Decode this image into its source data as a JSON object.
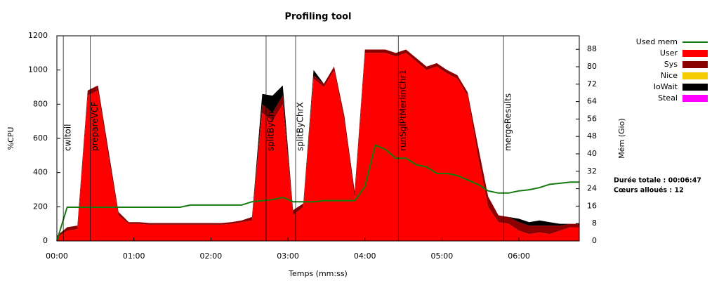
{
  "chart_data": {
    "type": "area",
    "title": "Profiling tool",
    "x_label": "Temps (mm:ss)",
    "y_label": "%CPU",
    "y2_label": "Mém (Gio)",
    "annotations": [
      "Durée totale : 00:06:47",
      "Cœurs alloués : 12"
    ],
    "xlim": [
      0,
      407
    ],
    "xticks": [
      {
        "value": 0,
        "label": "00:00"
      },
      {
        "value": 60,
        "label": "01:00"
      },
      {
        "value": 120,
        "label": "02:00"
      },
      {
        "value": 180,
        "label": "03:00"
      },
      {
        "value": 240,
        "label": "04:00"
      },
      {
        "value": 300,
        "label": "05:00"
      },
      {
        "value": 360,
        "label": "06:00"
      }
    ],
    "ylim": [
      0,
      1200
    ],
    "yticks": [
      0,
      200,
      400,
      600,
      800,
      1000,
      1200
    ],
    "y2lim": [
      0,
      94.2
    ],
    "y2ticks": [
      0,
      8,
      16,
      24,
      32,
      40,
      48,
      56,
      64,
      72,
      80,
      88
    ],
    "stacked": true,
    "x": [
      0,
      8,
      16,
      24,
      32,
      40,
      48,
      56,
      64,
      72,
      80,
      88,
      96,
      104,
      112,
      120,
      128,
      136,
      144,
      152,
      160,
      168,
      176,
      184,
      192,
      200,
      208,
      216,
      224,
      232,
      240,
      248,
      256,
      264,
      272,
      280,
      288,
      296,
      304,
      312,
      320,
      328,
      336,
      344,
      352,
      360,
      368,
      376,
      384,
      392,
      400,
      407
    ],
    "series": [
      {
        "name": "Used mem",
        "color": "#157a10",
        "axis": "y2",
        "values": [
          0,
          15.5,
          15.5,
          15.5,
          15.5,
          15.5,
          15.5,
          15.5,
          15.5,
          15.5,
          15.5,
          15.5,
          15.5,
          16.5,
          16.5,
          16.5,
          16.5,
          16.5,
          16.5,
          18,
          18.5,
          19,
          20,
          18,
          18,
          18,
          18.5,
          18.5,
          18.5,
          18.5,
          25,
          44,
          42,
          38,
          38,
          35,
          34,
          31,
          31,
          30,
          28,
          26,
          23,
          22,
          22,
          23,
          23.5,
          24.5,
          26,
          26.5,
          27,
          27
        ]
      },
      {
        "name": "User",
        "color": "#ff0000",
        "values": [
          20,
          60,
          70,
          850,
          880,
          500,
          150,
          100,
          100,
          95,
          95,
          95,
          95,
          95,
          95,
          95,
          95,
          100,
          110,
          120,
          750,
          700,
          800,
          150,
          200,
          950,
          900,
          1000,
          700,
          250,
          1100,
          1100,
          1100,
          1080,
          1100,
          1050,
          1000,
          1020,
          980,
          950,
          850,
          500,
          200,
          110,
          100,
          60,
          40,
          50,
          40,
          60,
          80,
          80
        ]
      },
      {
        "name": "Sys",
        "color": "#8b0000",
        "values": [
          10,
          20,
          20,
          30,
          30,
          40,
          20,
          10,
          10,
          10,
          10,
          10,
          10,
          10,
          10,
          10,
          10,
          10,
          10,
          20,
          50,
          50,
          50,
          30,
          20,
          20,
          20,
          20,
          30,
          40,
          20,
          20,
          20,
          20,
          20,
          20,
          20,
          20,
          20,
          20,
          20,
          60,
          60,
          40,
          40,
          50,
          50,
          40,
          50,
          30,
          20,
          20
        ]
      },
      {
        "name": "Nice",
        "color": "#f5cc00",
        "values": [
          0,
          0,
          0,
          0,
          0,
          0,
          0,
          0,
          0,
          0,
          0,
          0,
          0,
          0,
          0,
          0,
          0,
          0,
          0,
          0,
          0,
          0,
          0,
          0,
          0,
          0,
          0,
          0,
          0,
          0,
          0,
          0,
          0,
          0,
          0,
          0,
          0,
          0,
          0,
          0,
          0,
          0,
          0,
          0,
          0,
          0,
          0,
          0,
          0,
          0,
          0,
          0
        ]
      },
      {
        "name": "IoWait",
        "color": "#000000",
        "values": [
          0,
          0,
          0,
          0,
          0,
          0,
          0,
          0,
          0,
          0,
          0,
          0,
          0,
          0,
          0,
          0,
          0,
          0,
          0,
          0,
          60,
          100,
          60,
          0,
          0,
          30,
          0,
          0,
          0,
          0,
          0,
          0,
          0,
          0,
          0,
          0,
          0,
          0,
          0,
          0,
          0,
          0,
          0,
          0,
          0,
          20,
          20,
          30,
          20,
          10,
          0,
          0
        ]
      },
      {
        "name": "Steal",
        "color": "#ff00ff",
        "values": [
          0,
          0,
          0,
          0,
          0,
          0,
          0,
          0,
          0,
          0,
          0,
          0,
          0,
          0,
          0,
          0,
          0,
          0,
          0,
          0,
          0,
          0,
          0,
          0,
          0,
          0,
          0,
          0,
          0,
          0,
          0,
          0,
          0,
          0,
          0,
          0,
          0,
          0,
          0,
          0,
          0,
          0,
          0,
          0,
          0,
          0,
          0,
          0,
          0,
          0,
          0,
          0
        ]
      }
    ],
    "events": [
      {
        "label": "cwltoil",
        "x": 5
      },
      {
        "label": "prepareVCF",
        "x": 26
      },
      {
        "label": "splitByChr",
        "x": 163
      },
      {
        "label": "splitByChrX",
        "x": 186
      },
      {
        "label": "runSglPtMerlinChr1",
        "x": 266
      },
      {
        "label": "mergeResults",
        "x": 348
      }
    ]
  }
}
